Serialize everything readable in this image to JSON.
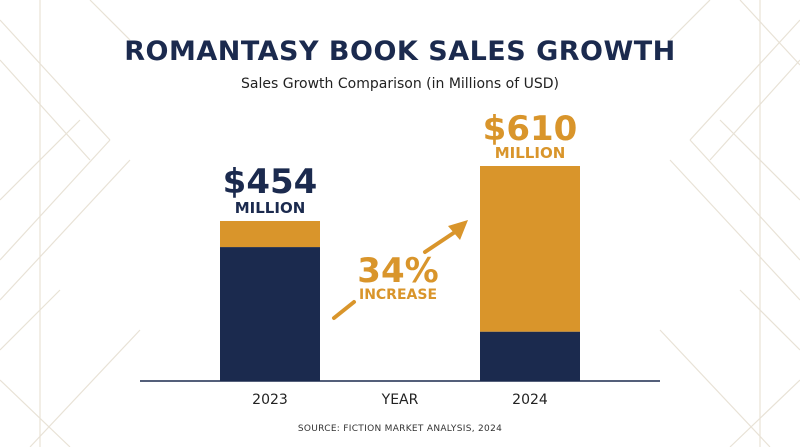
{
  "colors": {
    "navy": "#1b2a4e",
    "gold": "#d9952b",
    "deco_line": "#e8e2d6",
    "axis": "#1b2a4e"
  },
  "title": "ROMANTASY BOOK SALES GROWTH",
  "subtitle": "Sales Growth Comparison (in Millions of USD)",
  "source": "SOURCE: FICTION MARKET ANALYSIS, 2024",
  "chart_data": {
    "type": "bar",
    "title": "ROMANTASY BOOK SALES GROWTH",
    "subtitle": "Sales Growth Comparison (in Millions of USD)",
    "xlabel": "YEAR",
    "ylabel": "",
    "categories": [
      "2023",
      "2024"
    ],
    "values": [
      454,
      610
    ],
    "value_labels": [
      {
        "amount": "$454",
        "unit": "MILLION",
        "color": "#1b2a4e"
      },
      {
        "amount": "$610",
        "unit": "MILLION",
        "color": "#d9952b"
      }
    ],
    "segments": [
      {
        "navy": 380,
        "gold": 74
      },
      {
        "navy": 140,
        "gold": 470
      }
    ],
    "annotation": {
      "value": "34%",
      "label": "INCREASE"
    },
    "ylim": [
      0,
      780
    ],
    "grid": false,
    "legend": "none"
  }
}
